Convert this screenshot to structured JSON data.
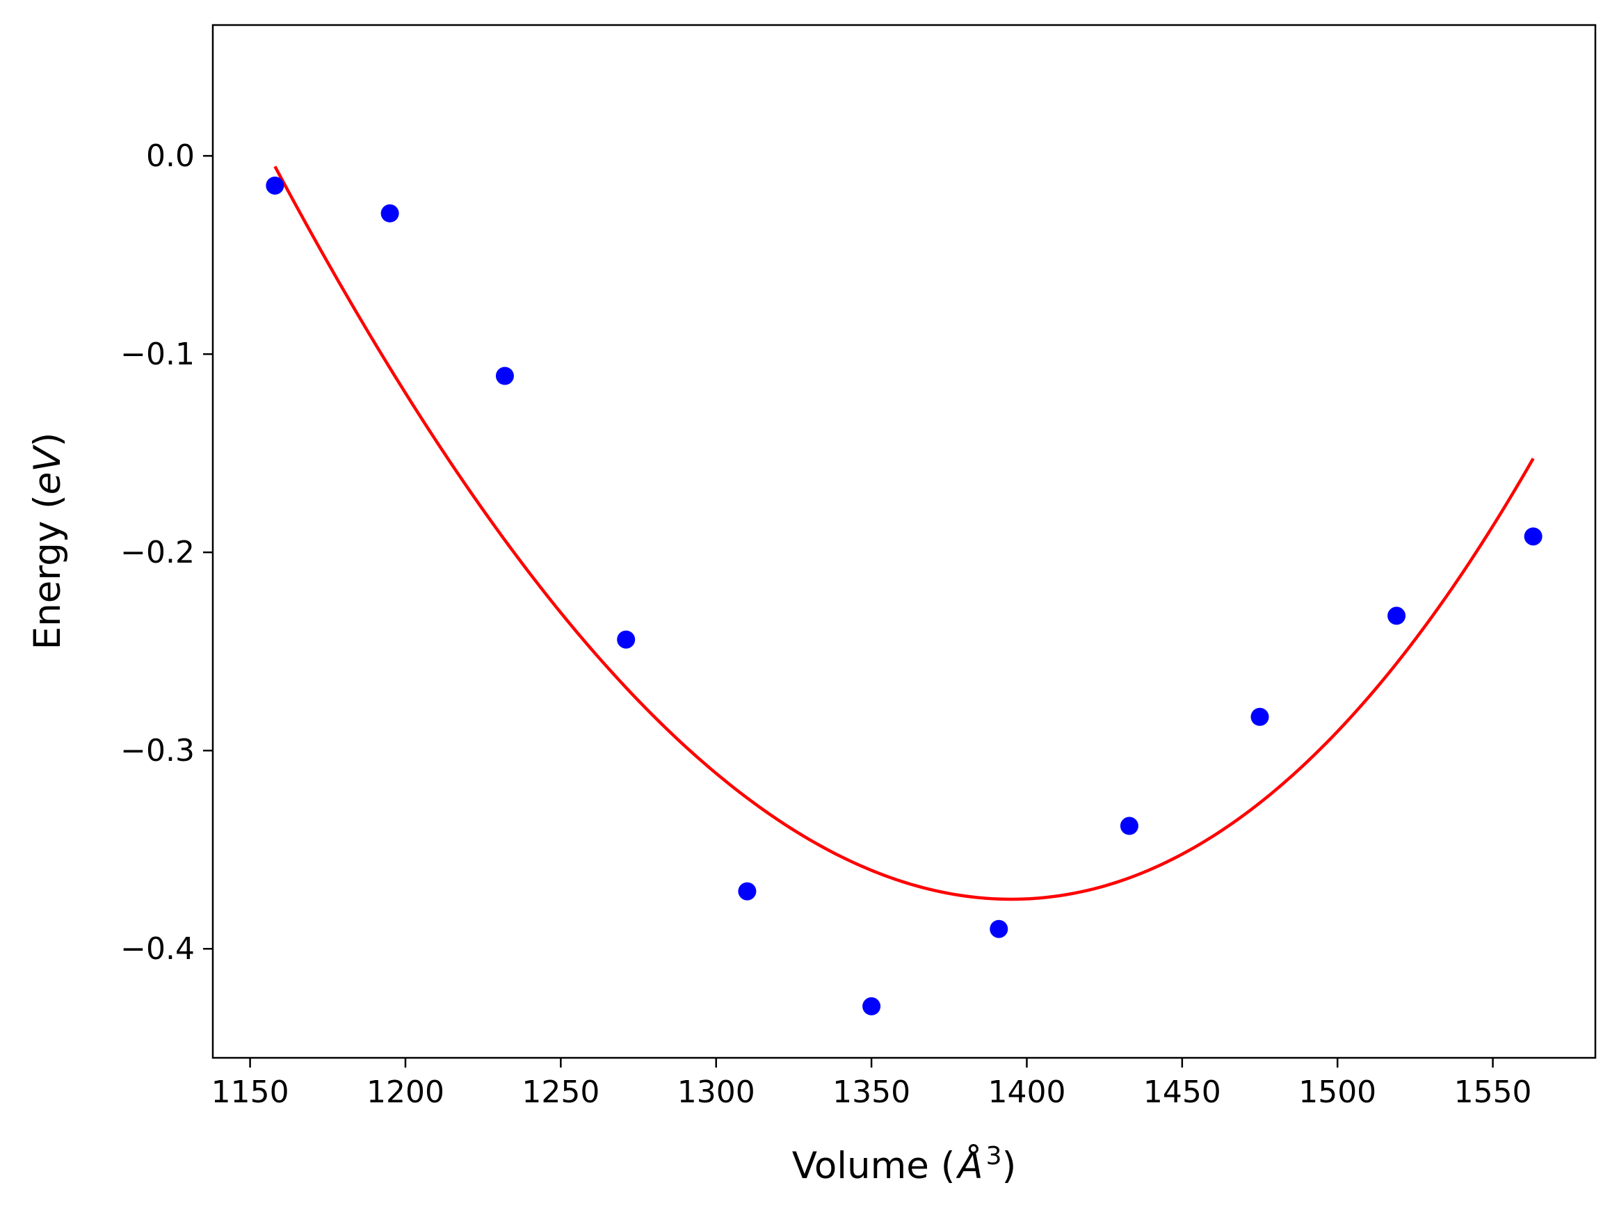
{
  "chart_data": {
    "type": "scatter",
    "xlabel": "Volume (Å³)",
    "ylabel": "Energy (eV)",
    "xlim": [
      1138,
      1583
    ],
    "ylim": [
      -0.455,
      0.066
    ],
    "x_ticks": [
      1150,
      1200,
      1250,
      1300,
      1350,
      1400,
      1450,
      1500,
      1550
    ],
    "x_tick_labels": [
      "1150",
      "1200",
      "1250",
      "1300",
      "1350",
      "1400",
      "1450",
      "1500",
      "1550"
    ],
    "y_ticks": [
      0.0,
      -0.1,
      -0.2,
      -0.3,
      -0.4
    ],
    "y_tick_labels": [
      "0.0",
      "−0.1",
      "−0.2",
      "−0.3",
      "−0.4"
    ],
    "grid": false,
    "series": [
      {
        "kind": "points",
        "color": "#0000ff",
        "x": [
          1158,
          1195,
          1232,
          1271,
          1310,
          1350,
          1391,
          1433,
          1475,
          1519,
          1563
        ],
        "y": [
          -0.015,
          -0.029,
          -0.111,
          -0.244,
          -0.371,
          -0.429,
          -0.39,
          -0.338,
          -0.283,
          -0.232,
          -0.192
        ]
      },
      {
        "kind": "fit-line",
        "color": "#ff0000",
        "x_range": [
          1158,
          1563
        ],
        "fit": {
          "vertex_x": 1395,
          "vertex_y": -0.375,
          "curvature": 7.34e-06,
          "skew": 3.2e-09
        }
      }
    ]
  }
}
